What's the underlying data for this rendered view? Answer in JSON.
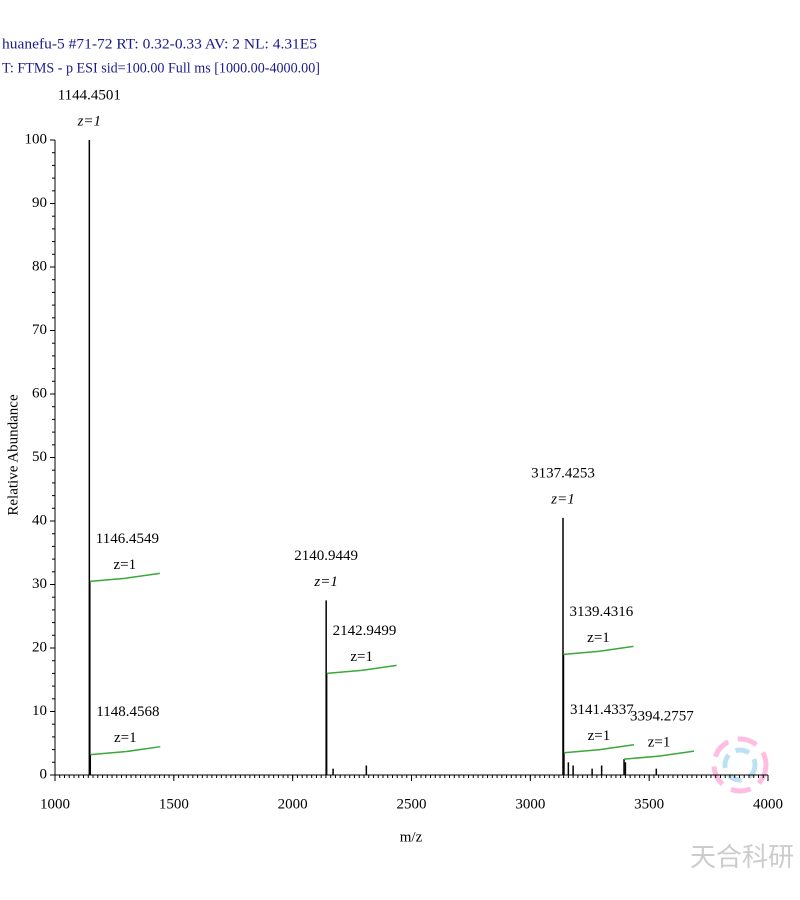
{
  "chart_data": {
    "type": "spectrum",
    "header": [
      "huanefu-5 #71-72 RT: 0.32-0.33 AV: 2 NL: 4.31E5",
      "T: FTMS - p ESI sid=100.00 Full ms [1000.00-4000.00]"
    ],
    "xlabel": "m/z",
    "ylabel": "Relative Abundance",
    "watermark": "天合科研",
    "color": "#000000",
    "envelope_color": "#3aa83a",
    "peaks": {
      "x": [
        1144.4501,
        1146.4549,
        1148.4568,
        2140.9449,
        2142.9499,
        3137.4253,
        3139.4316,
        3141.4337,
        3394.2757
      ],
      "values": [
        100,
        30.5,
        3.2,
        27.5,
        16,
        40.5,
        19,
        3.5,
        2.5
      ],
      "charges": [
        "z=1",
        "z=1",
        "z=1",
        "z=1",
        "z=1",
        "z=1",
        "z=1",
        "z=1",
        "z=1"
      ]
    },
    "minor_peaks": {
      "x": [
        2170,
        2310,
        3160,
        3180,
        3260,
        3300,
        3400,
        3530
      ],
      "values": [
        1,
        1.5,
        2,
        1.5,
        1,
        1.5,
        2,
        1
      ]
    },
    "xlim": [
      1000,
      4000
    ],
    "xticks": [
      1000,
      1500,
      2000,
      2500,
      3000,
      3500,
      4000
    ],
    "ylim": [
      0,
      100
    ],
    "yticks": [
      0,
      10,
      20,
      30,
      40,
      50,
      60,
      70,
      80,
      90,
      100
    ]
  }
}
